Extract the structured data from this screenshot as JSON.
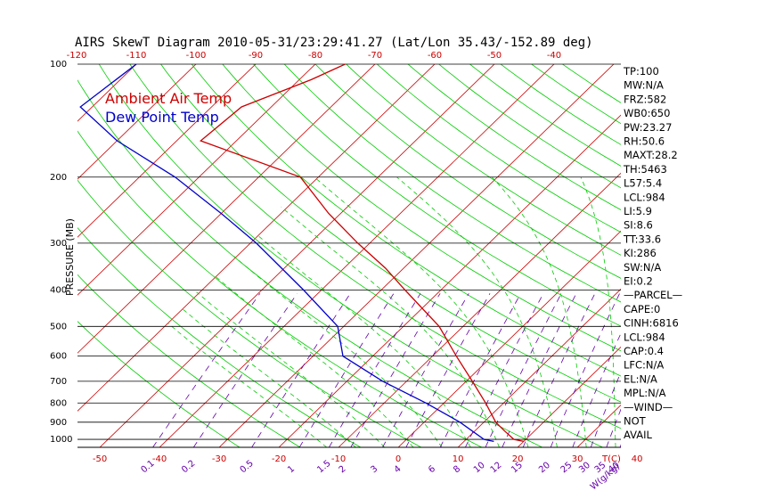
{
  "chart_data": {
    "type": "line",
    "title": "AIRS SkewT Diagram 2010-05-31/23:29:41.27 (Lat/Lon 35.43/-152.89 deg)",
    "ylabel": "PRESSURE (MB)",
    "y_scale": "log",
    "ylim": [
      1050,
      100
    ],
    "xlim_temperature_c": [
      -53,
      48
    ],
    "y_ticks": [
      "100",
      "200",
      "300",
      "400",
      "500",
      "600",
      "700",
      "800",
      "900",
      "1000"
    ],
    "top_temperature_ticks": [
      "-120",
      "-110",
      "-100",
      "-90",
      "-80",
      "-70",
      "-60",
      "-50",
      "-40"
    ],
    "bottom_temperature_ticks": [
      "-50",
      "-40",
      "-30",
      "-20",
      "-10",
      "0",
      "10",
      "20",
      "30",
      "40"
    ],
    "bottom_axis_unit": "T(C)",
    "mixing_ratio_labels": [
      "0.1",
      "0.2",
      "0.5",
      "1",
      "1.5",
      "2",
      "3",
      "4",
      "6",
      "8",
      "10",
      "12",
      "15",
      "20",
      "25",
      "30",
      "35",
      "40"
    ],
    "mixing_ratio_unit": "W(g/kg)",
    "grid": true,
    "legend_position": "top-left",
    "series": [
      {
        "name": "Ambient Air Temp",
        "color": "#cc0000",
        "pressure": [
          100,
          110,
          130,
          160,
          200,
          250,
          300,
          350,
          400,
          500,
          600,
          700,
          800,
          900,
          950,
          1000,
          1013
        ],
        "temperature": [
          -75,
          -78,
          -85,
          -86,
          -63,
          -52,
          -42,
          -33,
          -26,
          -14,
          -6,
          1,
          7,
          12,
          15,
          18,
          20
        ]
      },
      {
        "name": "Dew Point Temp",
        "color": "#0000cc",
        "pressure": [
          100,
          130,
          160,
          200,
          250,
          300,
          400,
          500,
          600,
          700,
          800,
          900,
          1000,
          1013
        ],
        "temperature": [
          -110,
          -112,
          -100,
          -84,
          -70,
          -59,
          -43,
          -31,
          -25,
          -14,
          -3,
          6,
          13,
          15
        ]
      }
    ],
    "dry_adiabats_theta_c": [
      -30,
      -20,
      -10,
      0,
      10,
      20,
      30,
      40,
      50,
      60,
      70,
      80,
      90,
      100,
      110,
      120,
      130,
      140,
      150,
      160,
      170,
      180
    ],
    "moist_adiabats_c": [
      -15,
      -10,
      -5,
      0,
      5,
      10,
      15,
      20,
      25,
      30,
      35,
      40
    ],
    "mixing_ratios_gkg": [
      0.1,
      0.2,
      0.5,
      1,
      1.5,
      2,
      3,
      4,
      6,
      8,
      10,
      12,
      15,
      20,
      25,
      30,
      35,
      40
    ],
    "isotherms_c_step": 10
  },
  "colors": {
    "isotherm": "#cc0000",
    "dry_adiabat": "#00cc00",
    "moist_adiabat": "#00cc00",
    "mixing_ratio": "#6600aa",
    "isobar": "#000000",
    "bottom_labels": "#cc0000"
  },
  "indices": [
    "TP:100",
    "MW:N/A",
    "FRZ:582",
    "WB0:650",
    "PW:23.27",
    "RH:50.6",
    "MAXT:28.2",
    "TH:5463",
    "L57:5.4",
    "LCL:984",
    "LI:5.9",
    "SI:8.6",
    "TT:33.6",
    "KI:286",
    "SW:N/A",
    "EI:0.2",
    "—PARCEL—",
    "CAPE:0",
    "CINH:6816",
    "LCL:984",
    "CAP:0.4",
    "LFC:N/A",
    "EL:N/A",
    "MPL:N/A",
    "—WIND—",
    "NOT",
    "AVAIL"
  ]
}
